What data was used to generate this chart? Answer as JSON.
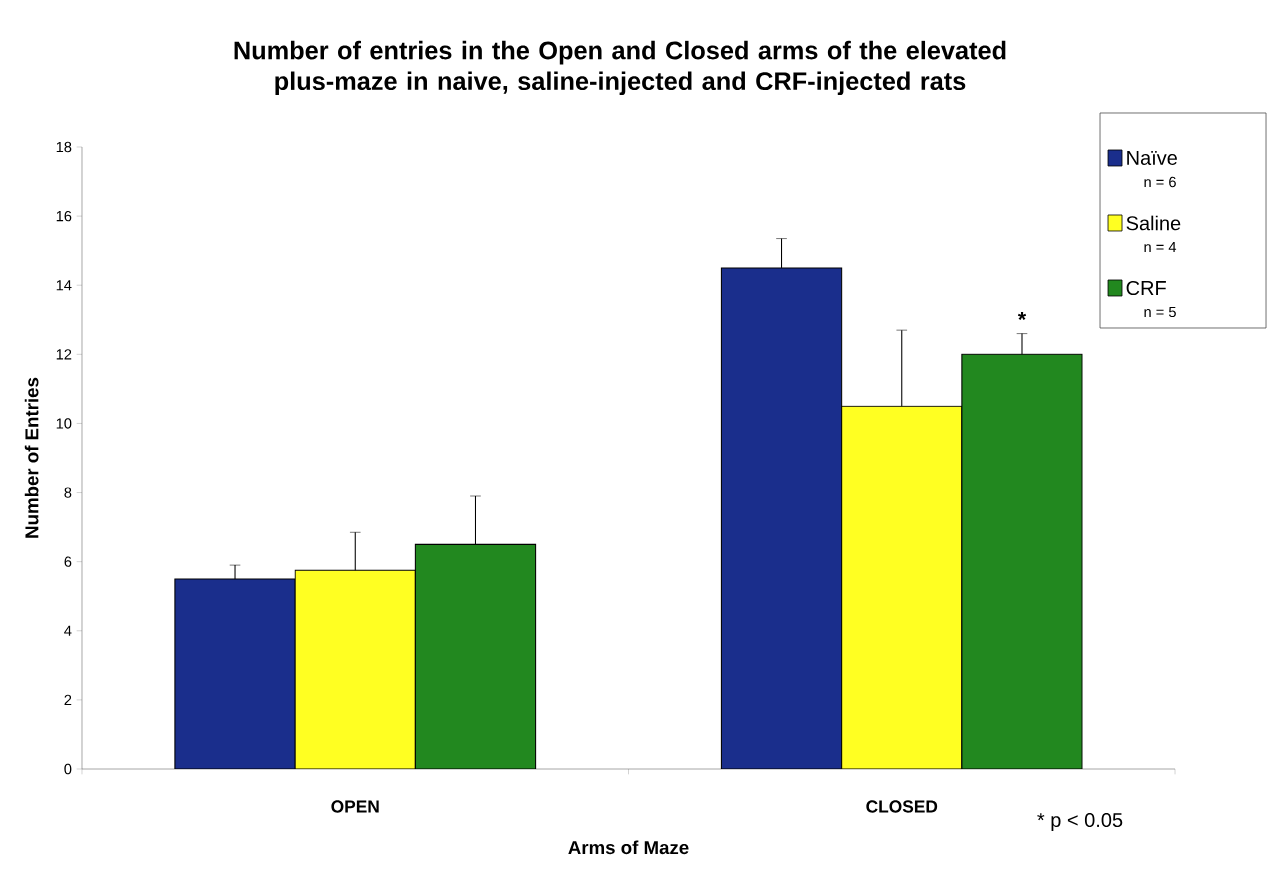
{
  "chart_data": {
    "type": "bar",
    "title": "Number of entries in the Open and Closed arms of the elevated plus-maze in naive, saline-injected and CRF-injected rats",
    "xlabel": "Arms of Maze",
    "ylabel": "Number of Entries",
    "categories": [
      "OPEN",
      "CLOSED"
    ],
    "series": [
      {
        "name": "Naïve",
        "color": "#1a2e8c",
        "values": [
          5.5,
          14.5
        ],
        "errors": [
          [
            5.5,
            5.9
          ],
          [
            14.5,
            15.35
          ]
        ]
      },
      {
        "name": "Saline",
        "color": "#ffff22",
        "values": [
          5.75,
          10.5
        ],
        "errors": [
          [
            5.75,
            6.85
          ],
          [
            10.5,
            12.7
          ]
        ]
      },
      {
        "name": "CRF",
        "color": "#22881f",
        "values": [
          6.5,
          12
        ],
        "errors": [
          [
            6.5,
            7.9
          ],
          [
            12,
            12.6
          ]
        ]
      }
    ],
    "ylim": [
      0,
      18
    ],
    "yticks": [
      0,
      2,
      4,
      6,
      8,
      10,
      12,
      14,
      16,
      18
    ],
    "legend": "top right",
    "annotations": [
      "n = 6",
      "n = 4",
      "n = 5",
      "*",
      "* p < 0.05"
    ]
  }
}
